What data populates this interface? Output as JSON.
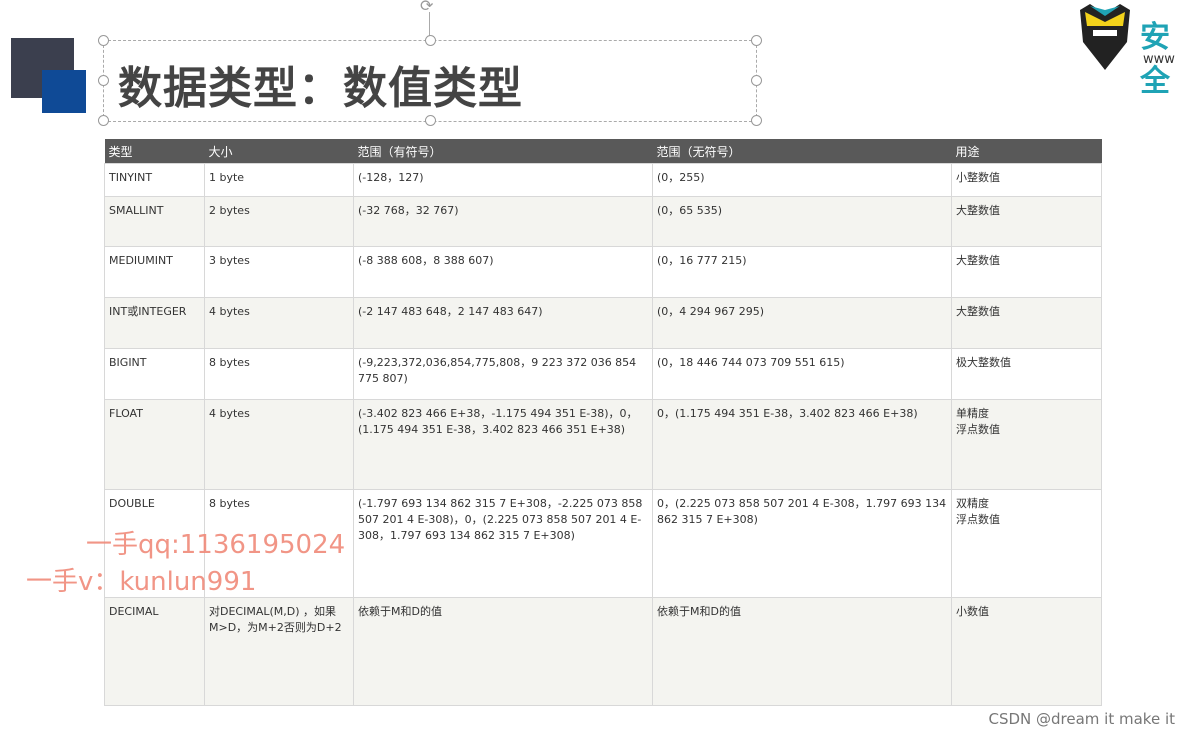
{
  "slide": {
    "title": "数据类型：数值类型",
    "logo_text": "安全",
    "logo_url": "www"
  },
  "table": {
    "headers": [
      "类型",
      "大小",
      "范围（有符号）",
      "范围（无符号）",
      "用途"
    ],
    "rows": [
      [
        "TINYINT",
        "1 byte",
        "(-128，127)",
        "(0，255)",
        "小整数值"
      ],
      [
        "SMALLINT",
        "2 bytes",
        "(-32 768，32 767)",
        "(0，65 535)",
        "大整数值"
      ],
      [
        "MEDIUMINT",
        "3 bytes",
        "(-8 388 608，8 388 607)",
        "(0，16 777 215)",
        "大整数值"
      ],
      [
        "INT或INTEGER",
        "4 bytes",
        "(-2 147 483 648，2 147 483 647)",
        "(0，4 294 967 295)",
        "大整数值"
      ],
      [
        "BIGINT",
        "8 bytes",
        "(-9,223,372,036,854,775,808，9 223 372 036 854 775 807)",
        "(0，18 446 744 073 709 551 615)",
        "极大整数值"
      ],
      [
        "FLOAT",
        "4 bytes",
        "(-3.402 823 466 E+38，-1.175 494 351 E-38)，0，(1.175 494 351 E-38，3.402 823 466 351 E+38)",
        "0，(1.175 494 351 E-38，3.402 823 466 E+38)",
        "单精度\n浮点数值"
      ],
      [
        "DOUBLE",
        "8 bytes",
        "(-1.797 693 134 862 315 7 E+308，-2.225 073 858 507 201 4 E-308)，0，(2.225 073 858 507 201 4 E-308，1.797 693 134 862 315 7 E+308)",
        "0，(2.225 073 858 507 201 4 E-308，1.797 693 134 862 315 7 E+308)",
        "双精度\n浮点数值"
      ],
      [
        "DECIMAL",
        "对DECIMAL(M,D) ，如果M>D，为M+2否则为D+2",
        "依赖于M和D的值",
        "依赖于M和D的值",
        "小数值"
      ]
    ]
  },
  "watermarks": [
    "一手qq:1136195024",
    "一手v：kunlun991"
  ],
  "credit": "CSDN @dream it make it"
}
